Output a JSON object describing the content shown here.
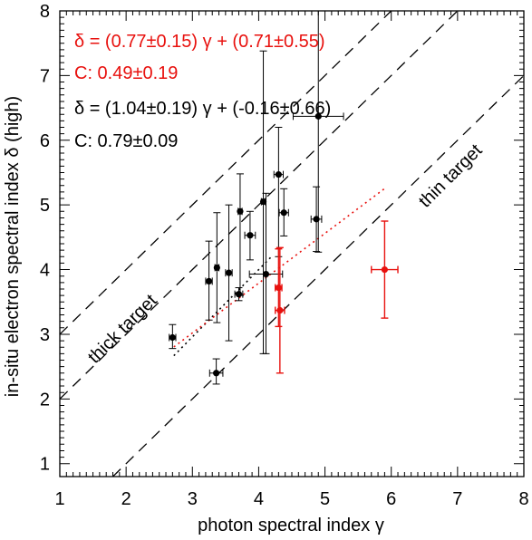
{
  "chart_data": {
    "type": "scatter",
    "xlabel": "photon spectral index γ",
    "ylabel": "in-situ electron spectral index δ (high)",
    "xlim": [
      1,
      8
    ],
    "ylim": [
      0.8,
      8
    ],
    "xticks": [
      1,
      2,
      3,
      4,
      5,
      6,
      7,
      8
    ],
    "yticks": [
      1,
      2,
      3,
      4,
      5,
      6,
      7,
      8
    ],
    "xtick_labels": [
      "1",
      "2",
      "3",
      "4",
      "5",
      "6",
      "7",
      "8"
    ],
    "ytick_labels": [
      "1",
      "2",
      "3",
      "4",
      "5",
      "6",
      "7",
      "8"
    ],
    "grid": false,
    "colors": {
      "black": "#000000",
      "red": "#e8110e"
    },
    "annotations": [
      {
        "text": "δ = (0.77±0.15) γ + (0.71±0.55)",
        "color": "red"
      },
      {
        "text": "C: 0.49±0.19",
        "color": "red"
      },
      {
        "text": "δ = (1.04±0.19) γ + (-0.16±0.66)",
        "color": "black"
      },
      {
        "text": "C: 0.79±0.09",
        "color": "black"
      }
    ],
    "reference_lines": [
      {
        "label": "thick target",
        "slope": 1,
        "intercept": 1,
        "style": "dashed"
      },
      {
        "label": "",
        "slope": 1,
        "intercept": 2,
        "style": "dashed"
      },
      {
        "label": "thin target",
        "slope": 1,
        "intercept": -1,
        "style": "dashed"
      }
    ],
    "fit_lines": [
      {
        "color": "black",
        "style": "dotted",
        "slope": 1.04,
        "intercept": -0.16,
        "x_range": [
          2.72,
          4.2
        ]
      },
      {
        "color": "red",
        "style": "dotted",
        "slope": 0.77,
        "intercept": 0.71,
        "x_range": [
          2.72,
          5.9
        ]
      }
    ],
    "series": [
      {
        "color": "black",
        "points": [
          {
            "x": 2.7,
            "y": 2.95,
            "xerr": 0.05,
            "yerr_low": 0.17,
            "yerr_high": 0.2
          },
          {
            "x": 3.25,
            "y": 3.82,
            "xerr": 0.05,
            "yerr_low": 0.6,
            "yerr_high": 0.62
          },
          {
            "x": 3.36,
            "y": 2.4,
            "xerr": 0.1,
            "yerr_low": 0.17,
            "yerr_high": 0.22
          },
          {
            "x": 3.37,
            "y": 4.03,
            "xerr": 0.03,
            "yerr_low": 0.85,
            "yerr_high": 0.85
          },
          {
            "x": 3.55,
            "y": 3.95,
            "xerr": 0.05,
            "yerr_low": 1.05,
            "yerr_high": 1.05
          },
          {
            "x": 3.7,
            "y": 3.62,
            "xerr": 0.06,
            "yerr_low": 0.1,
            "yerr_high": 0.1
          },
          {
            "x": 3.72,
            "y": 4.9,
            "xerr": 0.03,
            "yerr_low": 1.3,
            "yerr_high": 0.58
          },
          {
            "x": 3.87,
            "y": 4.53,
            "xerr": 0.08,
            "yerr_low": 0.38,
            "yerr_high": 0.37
          },
          {
            "x": 4.07,
            "y": 5.05,
            "xerr": 0.03,
            "yerr_low": 2.35,
            "yerr_high": 2.33
          },
          {
            "x": 4.11,
            "y": 3.93,
            "xerr": 0.25,
            "yerr_low": 1.23,
            "yerr_high": 1.25
          },
          {
            "x": 4.3,
            "y": 5.47,
            "xerr": 0.07,
            "yerr_low": 1.27,
            "yerr_high": 0.73
          },
          {
            "x": 4.38,
            "y": 4.88,
            "xerr": 0.07,
            "yerr_low": 0.36,
            "yerr_high": 0.37
          },
          {
            "x": 4.87,
            "y": 4.78,
            "xerr": 0.08,
            "yerr_low": 0.5,
            "yerr_high": 0.5
          },
          {
            "x": 4.9,
            "y": 6.37,
            "xerr": 0.38,
            "yerr_low": 2.1,
            "yerr_high": 1.63
          }
        ]
      },
      {
        "color": "red",
        "points": [
          {
            "x": 4.3,
            "y": 3.72,
            "xerr": 0.05,
            "yerr_low": 0.6,
            "yerr_high": 0.6
          },
          {
            "x": 4.32,
            "y": 3.37,
            "xerr": 0.07,
            "yerr_low": 0.97,
            "yerr_high": 0.97
          },
          {
            "x": 5.9,
            "y": 4.0,
            "xerr": 0.2,
            "yerr_low": 0.75,
            "yerr_high": 0.75
          }
        ]
      }
    ]
  }
}
